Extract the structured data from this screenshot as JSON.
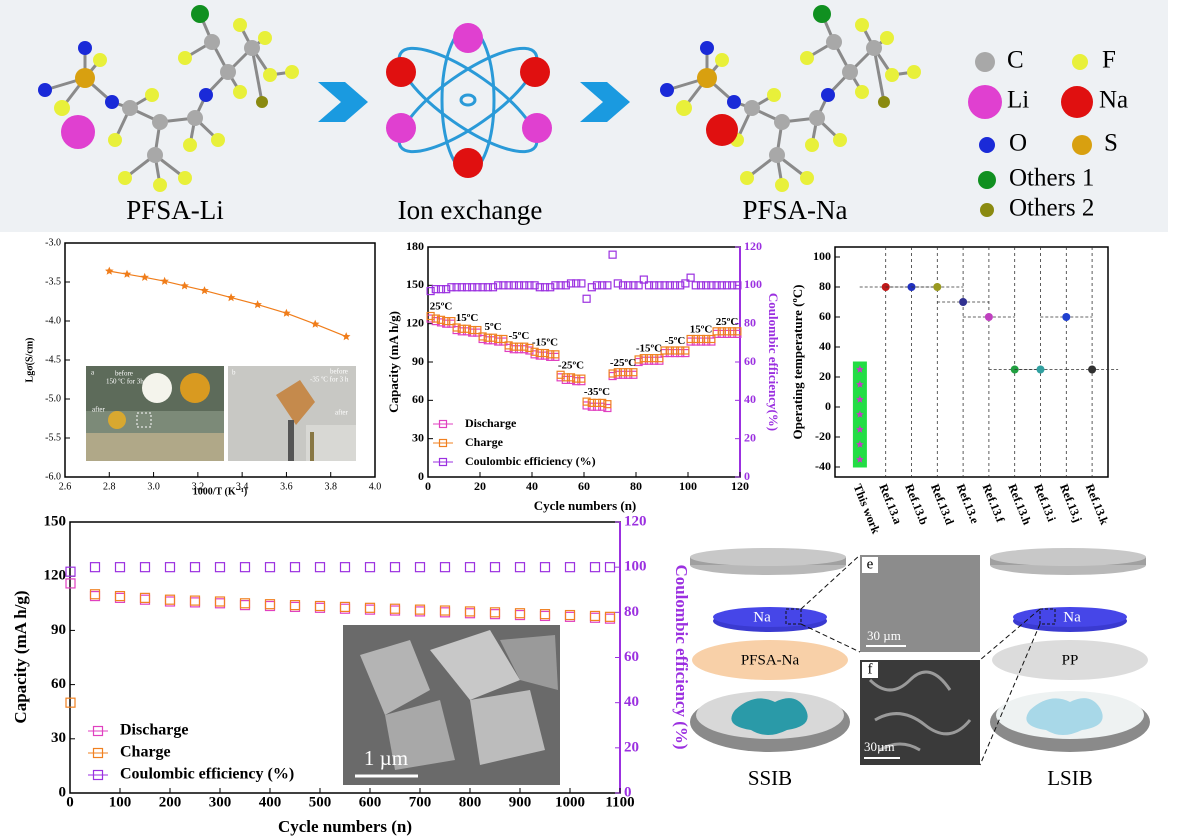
{
  "scheme": {
    "left_label": "PFSA-Li",
    "middle_label": "Ion exchange",
    "right_label": "PFSA-Na",
    "legend": [
      {
        "symbol": "C",
        "color": "#a8a8a8"
      },
      {
        "symbol": "F",
        "color": "#e8f03a"
      },
      {
        "symbol": "Li",
        "color": "#e040d0"
      },
      {
        "symbol": "Na",
        "color": "#e01010"
      },
      {
        "symbol": "O",
        "color": "#1a2ad8"
      },
      {
        "symbol": "S",
        "color": "#d8a010"
      },
      {
        "symbol": "Others 1",
        "color": "#109020"
      },
      {
        "symbol": "Others 2",
        "color": "#8a8a10"
      }
    ]
  },
  "chart_data": [
    {
      "type": "line",
      "ylabel": "Lgσ(S/cm)",
      "xlabel": "1000/T (K⁻¹)",
      "x": [
        2.8,
        2.88,
        2.96,
        3.05,
        3.14,
        3.23,
        3.35,
        3.47,
        3.6,
        3.73,
        3.87
      ],
      "series": [
        {
          "color": "#f07d1a",
          "values": [
            -3.36,
            -3.4,
            -3.44,
            -3.49,
            -3.55,
            -3.61,
            -3.7,
            -3.79,
            -3.9,
            -4.04,
            -4.2
          ]
        }
      ],
      "xlim": [
        2.6,
        4.0
      ],
      "xticks": [
        2.6,
        2.8,
        {
          "value": 3,
          "label": "3.0"
        },
        3.2,
        3.4,
        3.6,
        3.8,
        {
          "value": 4,
          "label": "4.0"
        }
      ],
      "ylim": [
        -6,
        -3
      ],
      "yticks": [
        {
          "value": -6,
          "label": "-6.0"
        },
        -5.5,
        {
          "value": -5,
          "label": "-5.0"
        },
        -4.5,
        {
          "value": -4,
          "label": "-4.0"
        },
        -3.5,
        {
          "value": -3,
          "label": "-3.0"
        }
      ],
      "inset_labels": [
        "a",
        "before",
        "150 ºC for 3h",
        "after",
        "b",
        "before",
        "-35 ºC for 3 h",
        "after"
      ]
    },
    {
      "type": "scatter",
      "ylabel": "Capacity (mA h/g)",
      "y2label": "Coulombic efficiency(%)",
      "xlabel": "Cycle numbers (n)",
      "x": [
        1,
        3,
        5,
        7,
        9,
        11,
        13,
        15,
        17,
        19,
        21,
        23,
        25,
        27,
        29,
        31,
        33,
        35,
        37,
        39,
        41,
        43,
        45,
        47,
        49,
        51,
        53,
        55,
        57,
        59,
        61,
        63,
        65,
        67,
        69,
        71,
        73,
        75,
        77,
        79,
        81,
        83,
        85,
        87,
        89,
        91,
        93,
        95,
        97,
        99,
        101,
        103,
        105,
        107,
        109,
        111,
        113,
        115,
        117,
        119
      ],
      "series": [
        {
          "name": "Discharge",
          "color": "#e040c0",
          "values": [
            124,
            122,
            121,
            120,
            120,
            115,
            114,
            114,
            113,
            113,
            108,
            107,
            107,
            106,
            106,
            101,
            100,
            100,
            100,
            99,
            96,
            95,
            95,
            94,
            94,
            78,
            76,
            76,
            75,
            75,
            56,
            55,
            55,
            55,
            54,
            79,
            80,
            80,
            80,
            80,
            90,
            91,
            91,
            91,
            91,
            97,
            97,
            97,
            97,
            97,
            106,
            106,
            106,
            106,
            106,
            112,
            112,
            112,
            112,
            112
          ]
        },
        {
          "name": "Charge",
          "color": "#f08020",
          "values": [
            126,
            124,
            123,
            122,
            122,
            117,
            116,
            116,
            115,
            115,
            110,
            109,
            109,
            108,
            108,
            103,
            102,
            102,
            102,
            101,
            98,
            97,
            97,
            96,
            96,
            80,
            78,
            78,
            77,
            77,
            59,
            58,
            58,
            58,
            57,
            81,
            82,
            82,
            82,
            82,
            92,
            93,
            93,
            93,
            93,
            99,
            99,
            99,
            99,
            99,
            108,
            108,
            108,
            108,
            108,
            114,
            114,
            114,
            114,
            114
          ]
        },
        {
          "name": "Coulombic efficiency (%)",
          "color": "#9b30e0",
          "axis": "y2",
          "values": [
            97,
            98,
            98,
            98,
            99,
            99,
            99,
            99,
            99,
            99,
            99,
            99,
            99,
            100,
            100,
            100,
            100,
            100,
            100,
            100,
            100,
            99,
            99,
            99,
            100,
            100,
            100,
            101,
            101,
            101,
            93,
            99,
            100,
            100,
            100,
            116,
            101,
            100,
            100,
            100,
            100,
            103,
            100,
            100,
            100,
            100,
            100,
            100,
            100,
            101,
            104,
            100,
            100,
            100,
            100,
            100,
            100,
            100,
            100,
            100
          ]
        }
      ],
      "annotations": [
        "25ºC",
        "15ºC",
        "5ºC",
        "-5ºC",
        "-15ºC",
        "-25ºC",
        "-35ºC",
        "-25ºC",
        "-15ºC",
        "-5ºC",
        "15ºC",
        "25ºC"
      ],
      "xlim": [
        0,
        120
      ],
      "xticks": [
        0,
        20,
        40,
        60,
        80,
        100,
        120
      ],
      "ylim": [
        0,
        180
      ],
      "yticks": [
        0,
        30,
        60,
        90,
        120,
        150,
        180
      ],
      "y2lim": [
        0,
        120
      ],
      "y2ticks": [
        0,
        20,
        40,
        60,
        80,
        100,
        120
      ],
      "y2color": "#9b30e0"
    },
    {
      "type": "dot",
      "ylabel": "Operating temperature (ºC)",
      "categories": [
        "This work",
        "Ref.13.a",
        "Ref.13.b",
        "Ref.13.d",
        "Ref.13.e",
        "Ref.13.f",
        "Ref.13.h",
        "Ref.13.i",
        "Ref.13.j",
        "Ref.13.k"
      ],
      "values": [
        null,
        80,
        80,
        80,
        70,
        60,
        25,
        25,
        60,
        25
      ],
      "point_colors": [
        null,
        "#c01818",
        "#2030c0",
        "#9a9a20",
        "#303090",
        "#c040c0",
        "#20a040",
        "#30a0a0",
        "#2040d0",
        "#303030"
      ],
      "work_values": [
        -35,
        -25,
        -15,
        -5,
        5,
        15,
        25
      ],
      "work_color": "#22dd44",
      "ylim": [
        -40,
        100
      ],
      "yticks": [
        -40,
        -20,
        0,
        20,
        40,
        60,
        80,
        100
      ]
    },
    {
      "type": "scatter",
      "ylabel": "Capacity (mA h/g)",
      "y2label": "Coulombic efficiency (%)",
      "xlabel": "Cycle numbers (n)",
      "x": [
        1,
        50,
        100,
        150,
        200,
        250,
        300,
        350,
        400,
        450,
        500,
        550,
        600,
        650,
        700,
        750,
        800,
        850,
        900,
        950,
        1000,
        1050,
        1080
      ],
      "series": [
        {
          "name": "Discharge",
          "color": "#e040c0",
          "values": [
            116,
            109,
            108,
            107,
            106,
            105.5,
            105,
            104,
            103.5,
            103,
            102.5,
            102,
            101.5,
            101,
            100.5,
            100,
            99.5,
            99,
            98.5,
            98,
            97.5,
            97,
            96.5
          ]
        },
        {
          "name": "Charge",
          "color": "#f08020",
          "values": [
            50,
            110,
            109,
            108,
            107,
            106.5,
            106,
            105,
            104.5,
            104,
            103.5,
            103,
            102.5,
            102,
            101.5,
            101,
            100.5,
            100,
            99.5,
            99,
            98.5,
            98,
            97.5
          ]
        },
        {
          "name": "Coulombic efficiency (%)",
          "color": "#9b30e0",
          "axis": "y2",
          "values": [
            98,
            100,
            100,
            100,
            100,
            100,
            100,
            100,
            100,
            100,
            100,
            100,
            100,
            100,
            100,
            100,
            100,
            100,
            100,
            100,
            100,
            100,
            100
          ]
        }
      ],
      "xlim": [
        0,
        1100
      ],
      "xticks": [
        0,
        100,
        200,
        300,
        400,
        500,
        600,
        700,
        800,
        900,
        1000,
        1100
      ],
      "ylim": [
        0,
        150
      ],
      "yticks": [
        0,
        30,
        60,
        90,
        120,
        150
      ],
      "y2lim": [
        0,
        120
      ],
      "y2ticks": [
        0,
        20,
        40,
        60,
        80,
        100,
        120
      ],
      "y2color": "#9b30e0",
      "inset_label": "1 µm"
    }
  ],
  "schematic": {
    "e_label": "e",
    "e_scale": "30 µm",
    "f_label": "f",
    "f_scale": "30µm",
    "ssib_anode": "Na",
    "ssib_separator": "PFSA-Na",
    "ssib_label": "SSIB",
    "lsib_anode": "Na",
    "lsib_separator": "PP",
    "lsib_label": "LSIB"
  }
}
